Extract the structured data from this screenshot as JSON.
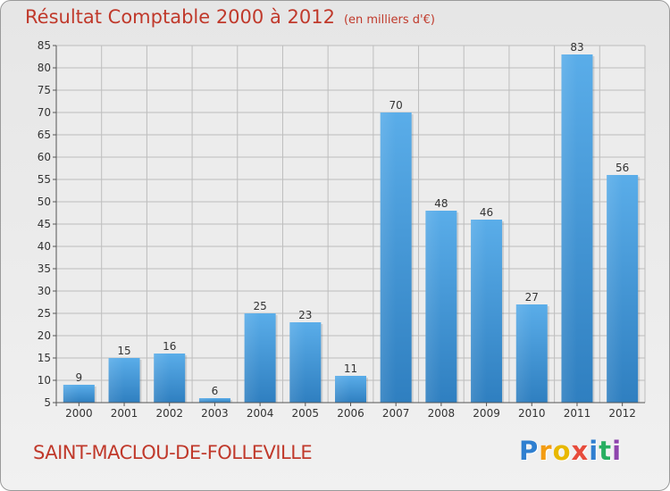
{
  "chart_data": {
    "type": "bar",
    "title": "Résultat Comptable 2000 à 2012",
    "unit_note": "(en milliers d'€)",
    "categories": [
      "2000",
      "2001",
      "2002",
      "2003",
      "2004",
      "2005",
      "2006",
      "2007",
      "2008",
      "2009",
      "2010",
      "2011",
      "2012"
    ],
    "values": [
      9,
      15,
      16,
      6,
      25,
      23,
      11,
      70,
      48,
      46,
      27,
      83,
      56
    ],
    "ylim": [
      5,
      85
    ],
    "yticks": [
      5,
      10,
      15,
      20,
      25,
      30,
      35,
      40,
      45,
      50,
      55,
      60,
      65,
      70,
      75,
      80,
      85
    ],
    "xlabel": "",
    "ylabel": "",
    "grid": true,
    "bar_color": "#4a9ee3"
  },
  "commune": "SAINT-MACLOU-DE-FOLLEVILLE",
  "logo": {
    "letters": [
      "P",
      "r",
      "o",
      "x",
      "i",
      "t",
      "i"
    ],
    "colors": [
      "#2f7fd0",
      "#f39c12",
      "#e8b800",
      "#e74c3c",
      "#2f7fd0",
      "#27ae60",
      "#8e44ad"
    ]
  },
  "colors": {
    "title": "#c0392b",
    "grid": "#bdbdbd"
  }
}
